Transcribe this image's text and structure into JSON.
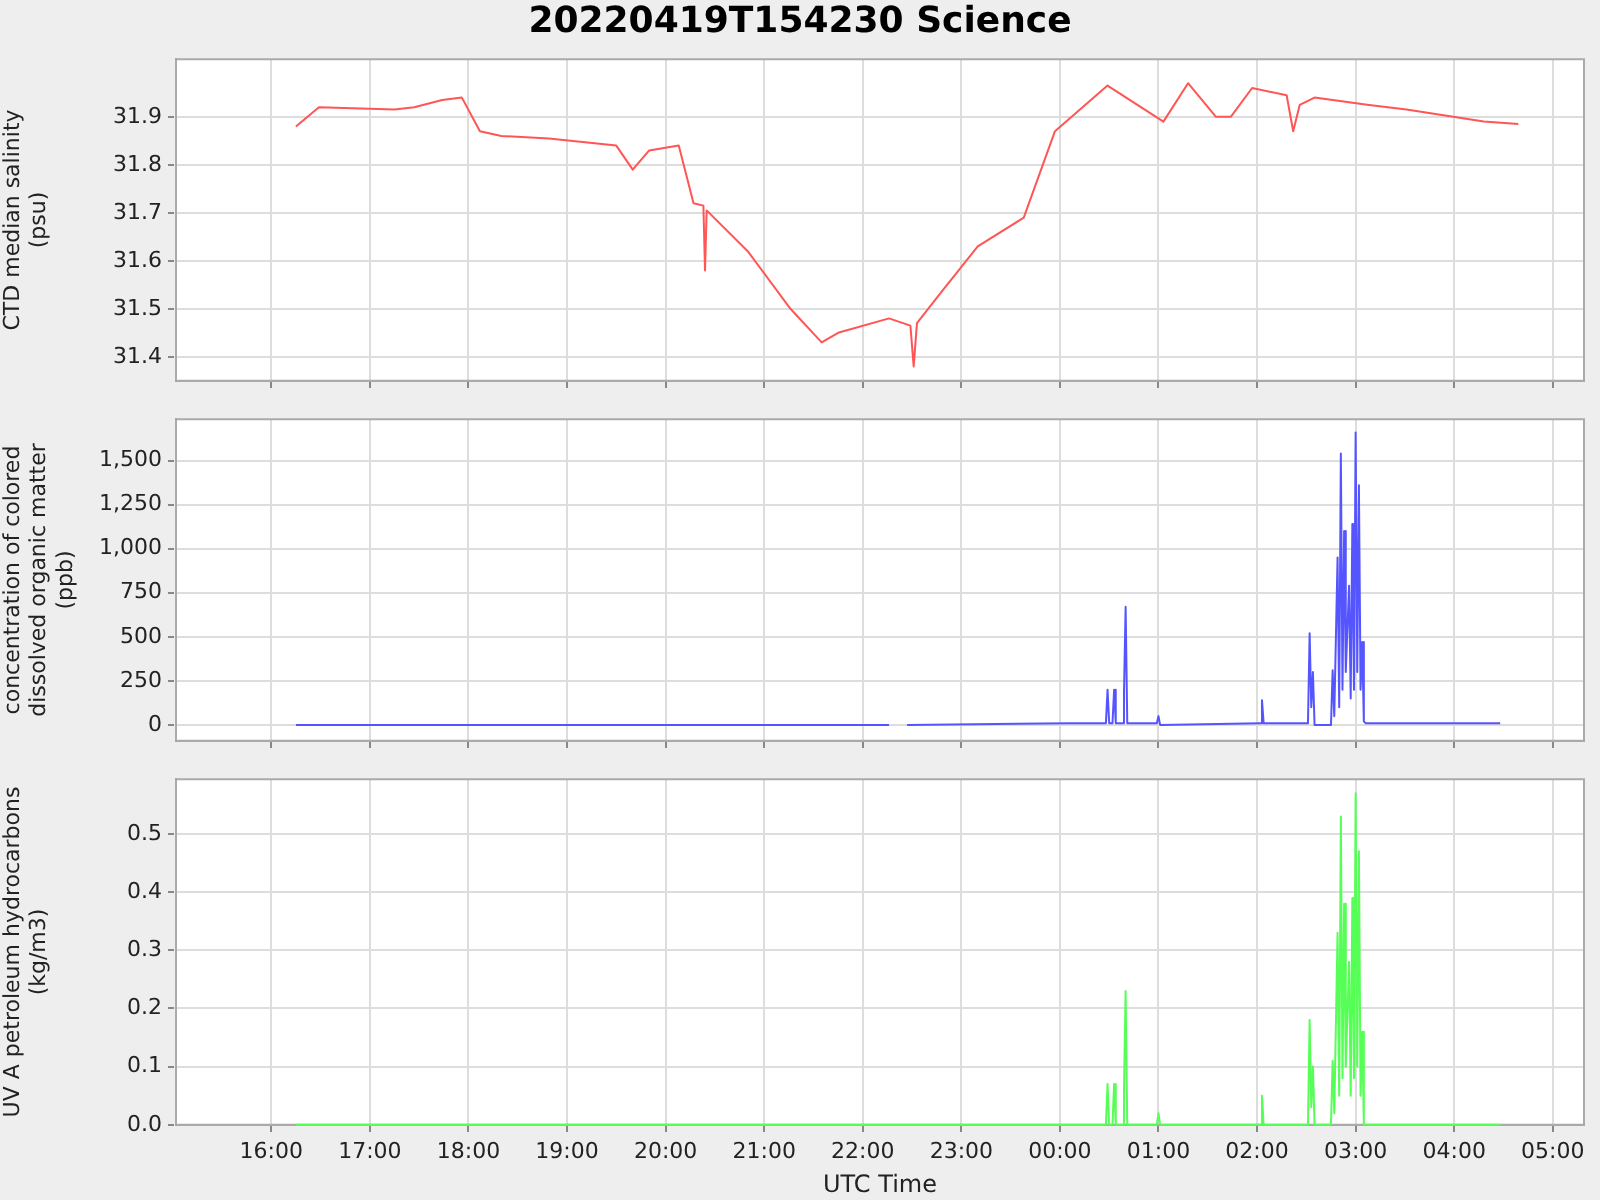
{
  "chart_data": [
    {
      "type": "line",
      "title": "20220419T154230 Science",
      "ylabel": "CTD median salinity (psu)",
      "tick_labels": "y",
      "grid": true,
      "x": [
        "2022-04-19T16:15",
        "2022-04-19T16:29",
        "2022-04-19T17:15",
        "2022-04-19T17:27",
        "2022-04-19T17:44",
        "2022-04-19T17:56",
        "2022-04-19T18:07",
        "2022-04-19T18:20",
        "2022-04-19T18:49",
        "2022-04-19T19:30",
        "2022-04-19T19:40",
        "2022-04-19T19:50",
        "2022-04-19T20:08",
        "2022-04-19T20:17",
        "2022-04-19T20:23",
        "2022-04-19T20:24",
        "2022-04-19T20:25",
        "2022-04-19T20:50",
        "2022-04-19T21:16",
        "2022-04-19T21:35",
        "2022-04-19T21:45",
        "2022-04-19T22:16",
        "2022-04-19T22:29",
        "2022-04-19T22:31",
        "2022-04-19T22:33",
        "2022-04-19T22:49",
        "2022-04-19T23:10",
        "2022-04-19T23:38",
        "2022-04-19T23:57",
        "2022-04-20T00:29",
        "2022-04-20T01:03",
        "2022-04-20T01:18",
        "2022-04-20T01:35",
        "2022-04-20T01:44",
        "2022-04-20T01:57",
        "2022-04-20T02:18",
        "2022-04-20T02:22",
        "2022-04-20T02:26",
        "2022-04-20T02:35",
        "2022-04-20T03:07",
        "2022-04-20T03:31",
        "2022-04-20T04:18",
        "2022-04-20T04:39"
      ],
      "series": [
        {
          "color": "#ff5555",
          "values": [
            31.88,
            31.92,
            31.915,
            31.92,
            31.935,
            31.94,
            31.87,
            31.86,
            31.855,
            31.84,
            31.79,
            31.83,
            31.84,
            31.72,
            31.715,
            31.58,
            31.705,
            31.62,
            31.5,
            31.43,
            31.45,
            31.48,
            31.465,
            31.38,
            31.47,
            31.54,
            31.63,
            31.69,
            31.87,
            31.965,
            31.89,
            31.97,
            31.9,
            31.9,
            31.96,
            31.945,
            31.87,
            31.925,
            31.94,
            31.925,
            31.915,
            31.89,
            31.885
          ]
        }
      ],
      "xlim": [
        "2022-04-19T15:02",
        "2022-04-20T05:19"
      ],
      "xticks": [
        {
          "value": "2022-04-19T16:00",
          "label": null
        },
        {
          "value": "2022-04-19T17:00",
          "label": null
        },
        {
          "value": "2022-04-19T18:00",
          "label": null
        },
        {
          "value": "2022-04-19T19:00",
          "label": null
        },
        {
          "value": "2022-04-19T20:00",
          "label": null
        },
        {
          "value": "2022-04-19T21:00",
          "label": null
        },
        {
          "value": "2022-04-19T22:00",
          "label": null
        },
        {
          "value": "2022-04-19T23:00",
          "label": null
        },
        {
          "value": "2022-04-20T00:00",
          "label": null
        },
        {
          "value": "2022-04-20T01:00",
          "label": null
        },
        {
          "value": "2022-04-20T02:00",
          "label": null
        },
        {
          "value": "2022-04-20T03:00",
          "label": null
        },
        {
          "value": "2022-04-20T04:00",
          "label": null
        },
        {
          "value": "2022-04-20T05:00",
          "label": null
        }
      ],
      "ylim": [
        31.35,
        32.02
      ],
      "yticks": [
        31.4,
        31.5,
        31.6,
        31.7,
        31.8,
        31.9
      ]
    },
    {
      "type": "line",
      "ylabel": "concentration of colored dissolved organic matter (ppb)",
      "tick_labels": "y",
      "grid": true,
      "x": [
        "2022-04-19T16:15",
        "2022-04-19T22:16",
        "2022-04-19T22:22",
        "2022-04-19T22:27",
        "2022-04-20T00:06",
        "2022-04-20T00:28",
        "2022-04-20T00:29",
        "2022-04-20T00:30",
        "2022-04-20T00:32",
        "2022-04-20T00:33",
        "2022-04-20T00:34",
        "2022-04-20T00:38",
        "2022-04-20T00:39",
        "2022-04-20T00:40",
        "2022-04-20T00:41",
        "2022-04-20T00:59",
        "2022-04-20T01:00",
        "2022-04-20T01:01",
        "2022-04-20T02:02",
        "2022-04-20T02:03",
        "2022-04-20T02:04",
        "2022-04-20T02:31",
        "2022-04-20T02:32",
        "2022-04-20T02:33",
        "2022-04-20T02:34",
        "2022-04-20T02:35",
        "2022-04-20T02:45",
        "2022-04-20T02:46",
        "2022-04-20T02:47",
        "2022-04-20T02:49",
        "2022-04-20T02:50",
        "2022-04-20T02:51",
        "2022-04-20T02:52",
        "2022-04-20T02:53",
        "2022-04-20T02:54",
        "2022-04-20T02:56",
        "2022-04-20T02:57",
        "2022-04-20T02:58",
        "2022-04-20T02:59",
        "2022-04-20T03:00",
        "2022-04-20T03:01",
        "2022-04-20T03:02",
        "2022-04-20T03:03",
        "2022-04-20T03:04",
        "2022-04-20T03:05",
        "2022-04-20T03:06",
        "2022-04-20T04:28"
      ],
      "series": [
        {
          "color": "#5555ff",
          "values": [
            0,
            0,
            null,
            0,
            10,
            10,
            200,
            10,
            10,
            200,
            10,
            10,
            180,
            670,
            10,
            10,
            50,
            0,
            10,
            140,
            10,
            10,
            520,
            100,
            300,
            0,
            0,
            310,
            50,
            950,
            100,
            1540,
            200,
            1100,
            300,
            790,
            150,
            1140,
            200,
            1660,
            300,
            1360,
            200,
            470,
            20,
            10,
            10
          ]
        }
      ],
      "xlim": [
        "2022-04-19T15:02",
        "2022-04-20T05:19"
      ],
      "xticks": [
        {
          "value": "2022-04-19T16:00",
          "label": null
        },
        {
          "value": "2022-04-19T17:00",
          "label": null
        },
        {
          "value": "2022-04-19T18:00",
          "label": null
        },
        {
          "value": "2022-04-19T19:00",
          "label": null
        },
        {
          "value": "2022-04-19T20:00",
          "label": null
        },
        {
          "value": "2022-04-19T21:00",
          "label": null
        },
        {
          "value": "2022-04-19T22:00",
          "label": null
        },
        {
          "value": "2022-04-19T23:00",
          "label": null
        },
        {
          "value": "2022-04-20T00:00",
          "label": null
        },
        {
          "value": "2022-04-20T01:00",
          "label": null
        },
        {
          "value": "2022-04-20T02:00",
          "label": null
        },
        {
          "value": "2022-04-20T03:00",
          "label": null
        },
        {
          "value": "2022-04-20T04:00",
          "label": null
        },
        {
          "value": "2022-04-20T05:00",
          "label": null
        }
      ],
      "ylim": [
        -90,
        1735
      ],
      "yticks": [
        0,
        250,
        500,
        750,
        {
          "value": 1000,
          "label": "1,000"
        },
        {
          "value": 1250,
          "label": "1,250"
        },
        {
          "value": 1500,
          "label": "1,500"
        }
      ]
    },
    {
      "type": "line",
      "ylabel": "UV A petroleum hydrocarbons (kg/m3)",
      "xlabel": "UTC Time",
      "grid": true,
      "x": [
        "2022-04-19T16:15",
        "2022-04-20T00:28",
        "2022-04-20T00:29",
        "2022-04-20T00:30",
        "2022-04-20T00:32",
        "2022-04-20T00:33",
        "2022-04-20T00:34",
        "2022-04-20T00:38",
        "2022-04-20T00:39",
        "2022-04-20T00:40",
        "2022-04-20T00:41",
        "2022-04-20T00:59",
        "2022-04-20T01:00",
        "2022-04-20T01:01",
        "2022-04-20T02:02",
        "2022-04-20T02:03",
        "2022-04-20T02:04",
        "2022-04-20T02:31",
        "2022-04-20T02:32",
        "2022-04-20T02:33",
        "2022-04-20T02:34",
        "2022-04-20T02:35",
        "2022-04-20T02:45",
        "2022-04-20T02:46",
        "2022-04-20T02:47",
        "2022-04-20T02:49",
        "2022-04-20T02:50",
        "2022-04-20T02:51",
        "2022-04-20T02:52",
        "2022-04-20T02:53",
        "2022-04-20T02:54",
        "2022-04-20T02:56",
        "2022-04-20T02:57",
        "2022-04-20T02:58",
        "2022-04-20T02:59",
        "2022-04-20T03:00",
        "2022-04-20T03:01",
        "2022-04-20T03:02",
        "2022-04-20T03:03",
        "2022-04-20T03:04",
        "2022-04-20T03:05",
        "2022-04-20T04:28"
      ],
      "series": [
        {
          "color": "#55ff55",
          "values": [
            0,
            0,
            0.07,
            0,
            0,
            0.07,
            0,
            0,
            0.06,
            0.23,
            0,
            0,
            0.02,
            0,
            0,
            0.05,
            0,
            0,
            0.18,
            0.03,
            0.1,
            0,
            0,
            0.11,
            0.02,
            0.33,
            0.05,
            0.53,
            0.08,
            0.38,
            0.1,
            0.28,
            0.05,
            0.39,
            0.08,
            0.57,
            0.1,
            0.47,
            0.05,
            0.16,
            0,
            0
          ]
        }
      ],
      "xlim": [
        "2022-04-19T15:02",
        "2022-04-20T05:19"
      ],
      "xticks": [
        {
          "value": "2022-04-19T16:00",
          "label": "16:00"
        },
        {
          "value": "2022-04-19T17:00",
          "label": "17:00"
        },
        {
          "value": "2022-04-19T18:00",
          "label": "18:00"
        },
        {
          "value": "2022-04-19T19:00",
          "label": "19:00"
        },
        {
          "value": "2022-04-19T20:00",
          "label": "20:00"
        },
        {
          "value": "2022-04-19T21:00",
          "label": "21:00"
        },
        {
          "value": "2022-04-19T22:00",
          "label": "22:00"
        },
        {
          "value": "2022-04-19T23:00",
          "label": "23:00"
        },
        {
          "value": "2022-04-20T00:00",
          "label": "00:00"
        },
        {
          "value": "2022-04-20T01:00",
          "label": "01:00"
        },
        {
          "value": "2022-04-20T02:00",
          "label": "02:00"
        },
        {
          "value": "2022-04-20T03:00",
          "label": "03:00"
        },
        {
          "value": "2022-04-20T04:00",
          "label": "04:00"
        },
        {
          "value": "2022-04-20T05:00",
          "label": "05:00"
        }
      ],
      "ylim": [
        0,
        0.594
      ],
      "yticks": [
        {
          "value": 0,
          "label": "0.0"
        },
        0.1,
        0.2,
        0.3,
        0.4,
        0.5
      ]
    }
  ]
}
